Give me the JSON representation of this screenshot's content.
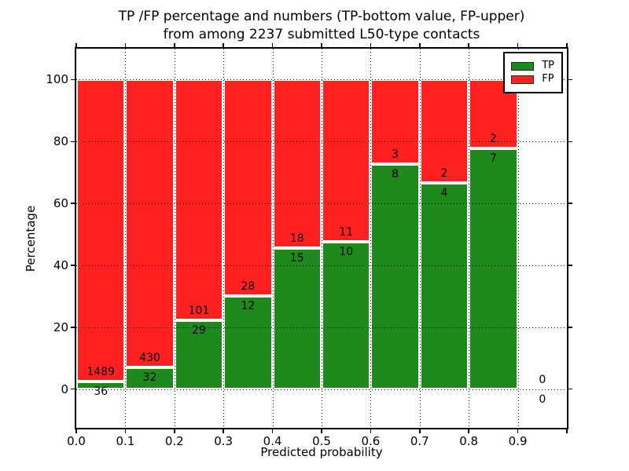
{
  "figure": {
    "title_line1": "TP /FP percentage and numbers (TP-bottom value, FP-upper)",
    "title_line2": "from among 2237 submitted L50-type contacts",
    "background_color": "#ffffff"
  },
  "chart_data": {
    "type": "bar",
    "stacked": true,
    "title": "TP /FP percentage and numbers (TP-bottom value, FP-upper) from among 2237 submitted L50-type contacts",
    "xlabel": "Predicted probability",
    "ylabel": "Percentage",
    "total_submitted_contacts": 2237,
    "xlim": [
      0.0,
      1.0
    ],
    "ylim": [
      -12.5,
      110
    ],
    "x_tick_values": [
      0.0,
      0.1,
      0.2,
      0.3,
      0.4,
      0.5,
      0.6,
      0.7,
      0.8,
      0.9
    ],
    "x_tick_labels": [
      "0.0",
      "0.1",
      "0.2",
      "0.3",
      "0.4",
      "0.5",
      "0.6",
      "0.7",
      "0.8",
      "0.9"
    ],
    "y_tick_values": [
      0,
      20,
      40,
      60,
      80,
      100
    ],
    "y_tick_labels": [
      "0",
      "20",
      "40",
      "60",
      "80",
      "100"
    ],
    "grid": "dotted",
    "bin_width": 0.1,
    "bins": [
      {
        "x_start": 0.0,
        "x_end": 0.1,
        "tp": 36,
        "fp": 1489
      },
      {
        "x_start": 0.1,
        "x_end": 0.2,
        "tp": 32,
        "fp": 430
      },
      {
        "x_start": 0.2,
        "x_end": 0.3,
        "tp": 29,
        "fp": 101
      },
      {
        "x_start": 0.3,
        "x_end": 0.4,
        "tp": 12,
        "fp": 28
      },
      {
        "x_start": 0.4,
        "x_end": 0.5,
        "tp": 15,
        "fp": 18
      },
      {
        "x_start": 0.5,
        "x_end": 0.6,
        "tp": 10,
        "fp": 11
      },
      {
        "x_start": 0.6,
        "x_end": 0.7,
        "tp": 8,
        "fp": 3
      },
      {
        "x_start": 0.7,
        "x_end": 0.8,
        "tp": 4,
        "fp": 2
      },
      {
        "x_start": 0.8,
        "x_end": 0.9,
        "tp": 7,
        "fp": 2
      },
      {
        "x_start": 0.9,
        "x_end": 1.0,
        "tp": 0,
        "fp": 0
      }
    ],
    "series": [
      {
        "name": "TP",
        "color": "#1e8a1e",
        "position": "bottom"
      },
      {
        "name": "FP",
        "color": "#ff2020",
        "position": "top"
      }
    ],
    "bar_edge_color": "#ffffff",
    "legend_position": "upper right"
  },
  "legend": {
    "items": [
      {
        "label": "TP",
        "color": "#1e8a1e"
      },
      {
        "label": "FP",
        "color": "#ff2020"
      }
    ]
  }
}
